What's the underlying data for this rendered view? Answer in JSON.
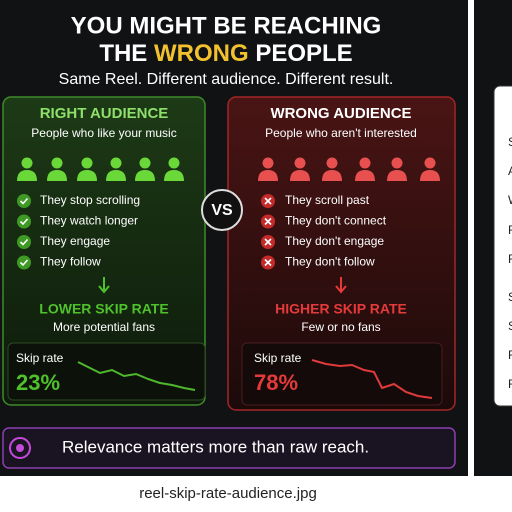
{
  "infographic": {
    "title": {
      "line1": "YOU MIGHT BE REACHING",
      "line2": [
        "THE",
        "WRONG",
        "PEOPLE"
      ]
    },
    "subtitle": "Same Reel. Different audience. Different result.",
    "left": {
      "heading": "RIGHT AUDIENCE",
      "subheading": "People who like your music",
      "items": [
        "They stop scrolling",
        "They watch longer",
        "They engage",
        "They follow"
      ],
      "result": "LOWER SKIP RATE",
      "result_note": "More potential fans",
      "metric_label": "Skip rate",
      "metric_value": "23%"
    },
    "vs": "VS",
    "right": {
      "heading": "WRONG AUDIENCE",
      "subheading": "People who aren't interested",
      "items": [
        "They scroll past",
        "They don't connect",
        "They don't engage",
        "They don't follow"
      ],
      "result": "HIGHER SKIP RATE",
      "result_note": "Few or no fans",
      "metric_label": "Skip rate",
      "metric_value": "78%"
    },
    "footer": "Relevance matters more than raw reach."
  },
  "side_panel": {
    "letters": [
      "S",
      "A",
      "W",
      "F",
      "F",
      "S",
      "S",
      "F",
      "F"
    ]
  },
  "filename": "reel-skip-rate-audience.jpg"
}
